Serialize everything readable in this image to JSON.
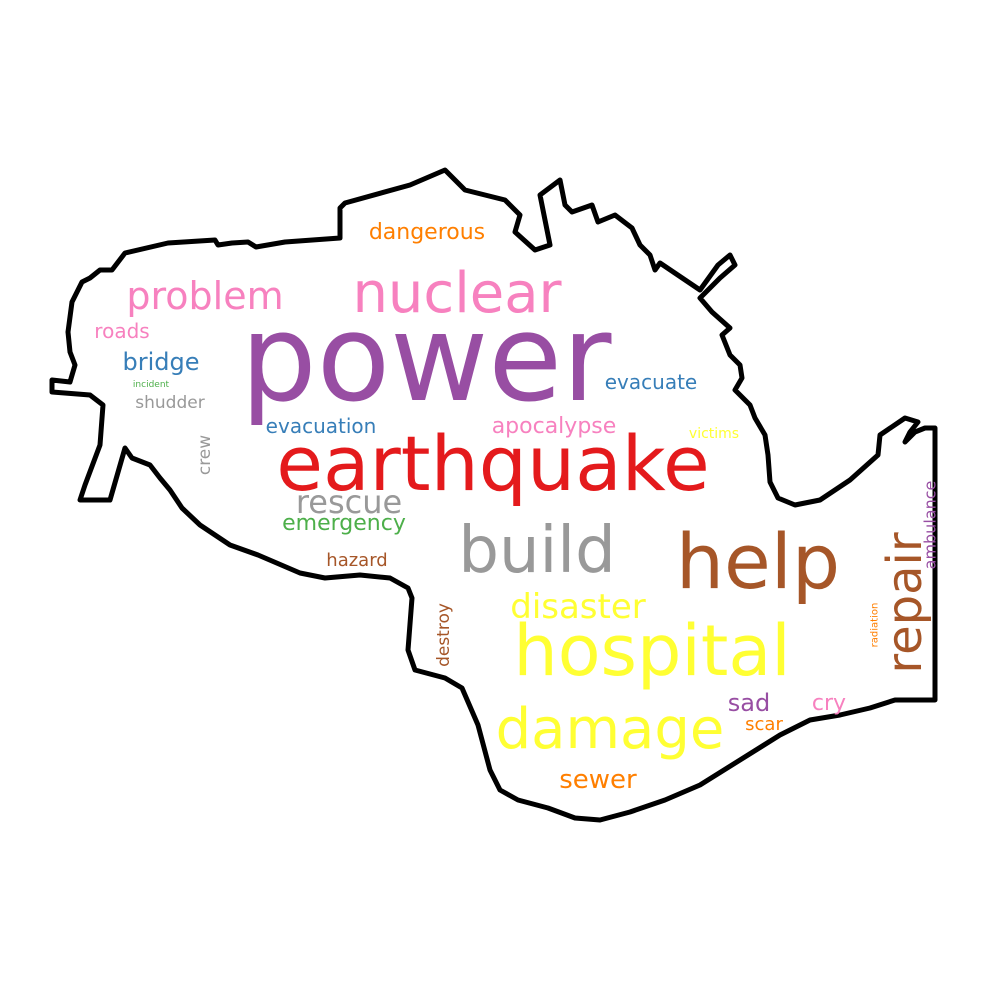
{
  "words": [
    {
      "text": "power",
      "color": "#984ea3"
    },
    {
      "text": "earthquake",
      "color": "#e41a1c"
    },
    {
      "text": "build",
      "color": "#999999"
    },
    {
      "text": "help",
      "color": "#a65628"
    },
    {
      "text": "hospital",
      "color": "#ffff33"
    },
    {
      "text": "nuclear",
      "color": "#f781bf"
    },
    {
      "text": "damage",
      "color": "#ffff33"
    },
    {
      "text": "repair",
      "color": "#a65628"
    },
    {
      "text": "problem",
      "color": "#f781bf"
    },
    {
      "text": "disaster",
      "color": "#ffff33"
    },
    {
      "text": "rescue",
      "color": "#999999"
    },
    {
      "text": "sewer",
      "color": "#ff7f00"
    },
    {
      "text": "emergency",
      "color": "#4daf4a"
    },
    {
      "text": "dangerous",
      "color": "#ff7f00"
    },
    {
      "text": "apocalypse",
      "color": "#f781bf"
    },
    {
      "text": "bridge",
      "color": "#377eb8"
    },
    {
      "text": "evacuation",
      "color": "#377eb8"
    },
    {
      "text": "evacuate",
      "color": "#377eb8"
    },
    {
      "text": "sad",
      "color": "#984ea3"
    },
    {
      "text": "cry",
      "color": "#f781bf"
    },
    {
      "text": "roads",
      "color": "#f781bf"
    },
    {
      "text": "hazard",
      "color": "#a65628"
    },
    {
      "text": "ambulance",
      "color": "#984ea3"
    },
    {
      "text": "destroy",
      "color": "#a65628"
    },
    {
      "text": "shudder",
      "color": "#999999"
    },
    {
      "text": "scar",
      "color": "#ff7f00"
    },
    {
      "text": "crew",
      "color": "#999999"
    },
    {
      "text": "victims",
      "color": "#ffff33"
    },
    {
      "text": "radiation",
      "color": "#ff7f00"
    },
    {
      "text": "incident",
      "color": "#4daf4a"
    }
  ]
}
